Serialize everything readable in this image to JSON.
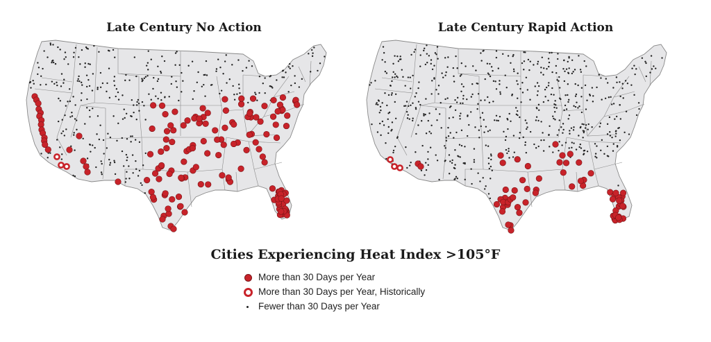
{
  "maps": [
    {
      "title": "Late Century No Action"
    },
    {
      "title": "Late Century Rapid Action"
    }
  ],
  "legend": {
    "title": "Cities Experiencing Heat Index >105°F",
    "items": [
      {
        "label": "More than 30 Days per Year",
        "symbol": "filled-red-circle"
      },
      {
        "label": "More than 30 Days per Year, Historically",
        "symbol": "red-ring"
      },
      {
        "label": "Fewer than 30 Days per Year",
        "symbol": "small-black-dot"
      }
    ]
  },
  "colors": {
    "red": "#c8232a",
    "land": "#e6e6e8",
    "border": "#8a8a8a"
  }
}
